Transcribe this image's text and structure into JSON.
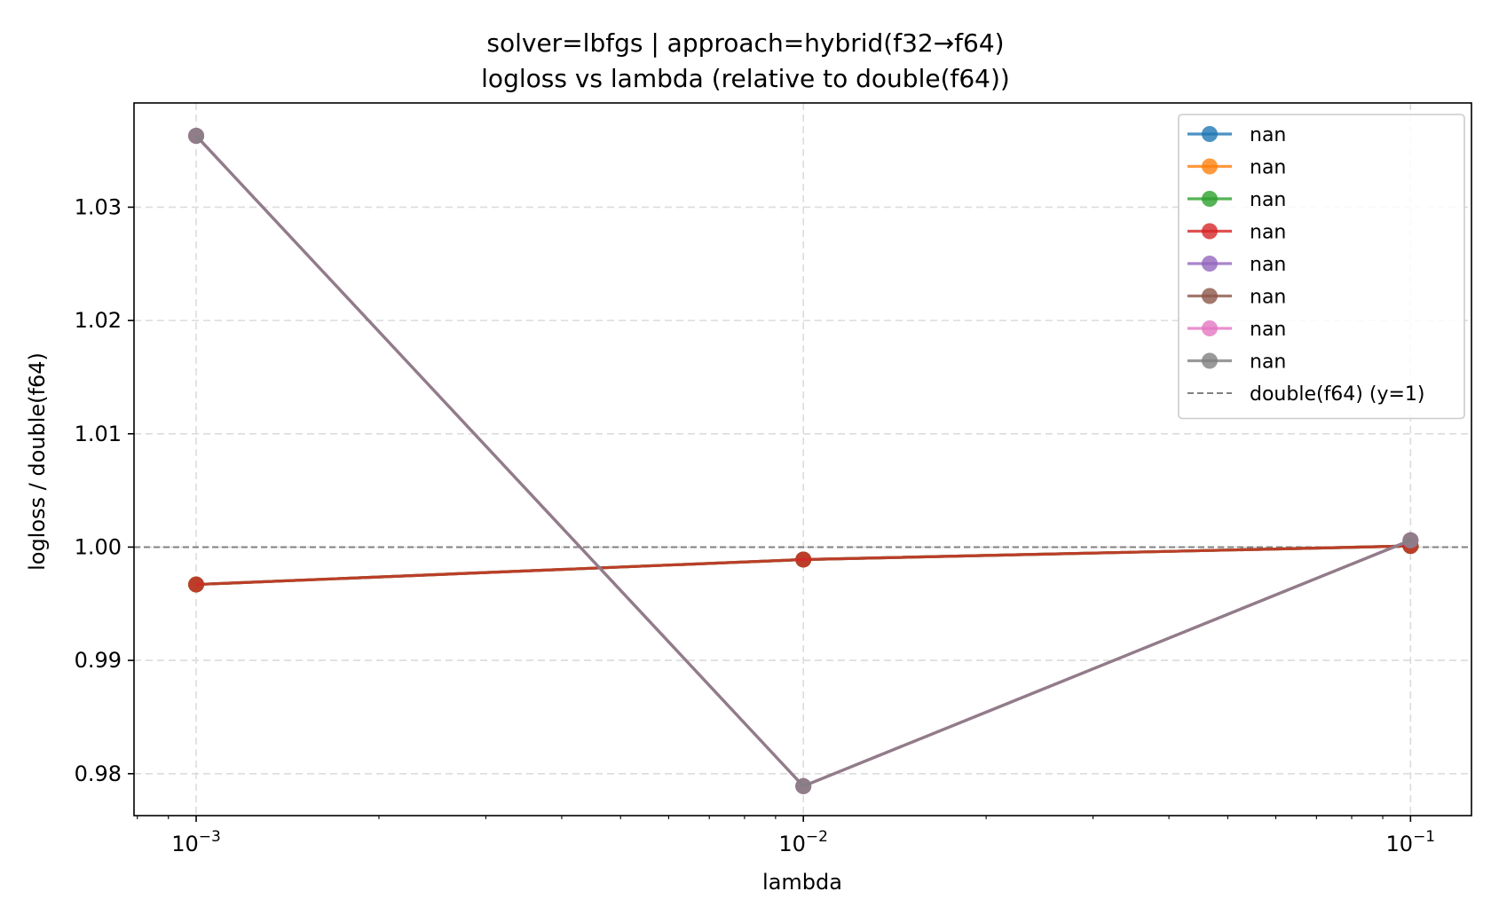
{
  "chart_data": {
    "type": "line",
    "title": "solver=lbfgs | approach=hybrid(f32→f64)",
    "subtitle": "logloss vs lambda (relative to double(f64))",
    "xlabel": "lambda",
    "ylabel": "logloss / double(f64)",
    "xscale": "log",
    "xlim": [
      0.00079,
      0.126
    ],
    "ylim": [
      0.9763,
      1.0392
    ],
    "x": [
      0.001,
      0.01,
      0.1
    ],
    "xtick_labels": [
      {
        "value": 0.001,
        "base": "10",
        "exp": "−3"
      },
      {
        "value": 0.01,
        "base": "10",
        "exp": "−2"
      },
      {
        "value": 0.1,
        "base": "10",
        "exp": "−1"
      }
    ],
    "yticks": [
      0.98,
      0.99,
      1.0,
      1.01,
      1.02,
      1.03
    ],
    "ytick_labels": [
      "0.98",
      "0.99",
      "1.00",
      "1.01",
      "1.02",
      "1.03"
    ],
    "grid": true,
    "legend_position": "top-right",
    "series": [
      {
        "name": "nan",
        "color": "#1f77b4",
        "values": [
          0.9967,
          0.9989,
          1.0001
        ]
      },
      {
        "name": "nan",
        "color": "#ff7f0e",
        "values": [
          0.9967,
          0.9989,
          1.0001
        ]
      },
      {
        "name": "nan",
        "color": "#2ca02c",
        "values": [
          0.9967,
          0.9989,
          1.0001
        ]
      },
      {
        "name": "nan",
        "color": "#d62728",
        "values": [
          0.9967,
          0.9989,
          1.0001
        ]
      },
      {
        "name": "nan",
        "color": "#9467bd",
        "values": [
          1.0363,
          0.9789,
          1.0006
        ]
      },
      {
        "name": "nan",
        "color": "#8c564b",
        "values": [
          1.0363,
          0.9789,
          1.0006
        ]
      },
      {
        "name": "nan",
        "color": "#e377c2",
        "values": [
          1.0363,
          0.9789,
          1.0006
        ]
      },
      {
        "name": "nan",
        "color": "#7f7f7f",
        "values": [
          1.0363,
          0.9789,
          1.0006
        ]
      }
    ],
    "reference_line": {
      "name": "double(f64) (y=1)",
      "y": 1.0,
      "color": "#808080",
      "style": "dashed"
    }
  }
}
